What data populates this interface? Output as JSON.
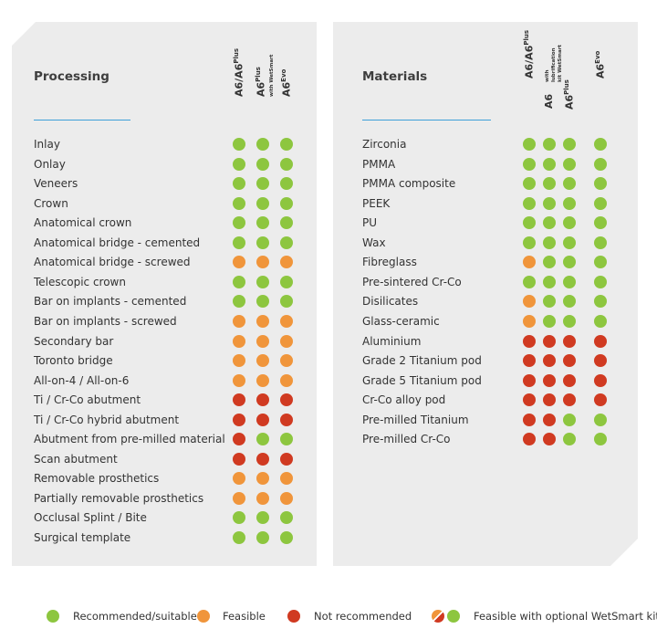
{
  "colors": {
    "recommended": "#8dc63f",
    "feasible": "#f0953b",
    "not_recommended": "#d03a21",
    "accent": "#3ea0d8"
  },
  "processing": {
    "title": "Processing",
    "columns": [
      {
        "main": "A6/A6",
        "sup": "Plus",
        "sub": ""
      },
      {
        "main": "A6",
        "sup": "Plus",
        "sub": "with WetSmart"
      },
      {
        "main": "A6",
        "sup": "Evo",
        "sub": ""
      }
    ],
    "rows": [
      {
        "label": "Inlay",
        "s": [
          "g",
          "g",
          "g"
        ]
      },
      {
        "label": "Onlay",
        "s": [
          "g",
          "g",
          "g"
        ]
      },
      {
        "label": "Veneers",
        "s": [
          "g",
          "g",
          "g"
        ]
      },
      {
        "label": "Crown",
        "s": [
          "g",
          "g",
          "g"
        ]
      },
      {
        "label": "Anatomical crown",
        "s": [
          "g",
          "g",
          "g"
        ]
      },
      {
        "label": "Anatomical bridge - cemented",
        "s": [
          "g",
          "g",
          "g"
        ]
      },
      {
        "label": "Anatomical bridge - screwed",
        "s": [
          "o",
          "o",
          "o"
        ]
      },
      {
        "label": "Telescopic crown",
        "s": [
          "g",
          "g",
          "g"
        ]
      },
      {
        "label": "Bar on implants - cemented",
        "s": [
          "g",
          "g",
          "g"
        ]
      },
      {
        "label": "Bar on implants - screwed",
        "s": [
          "o",
          "o",
          "o"
        ]
      },
      {
        "label": "Secondary bar",
        "s": [
          "o",
          "o",
          "o"
        ]
      },
      {
        "label": "Toronto bridge",
        "s": [
          "o",
          "o",
          "o"
        ]
      },
      {
        "label": "All-on-4 / All-on-6",
        "s": [
          "o",
          "o",
          "o"
        ]
      },
      {
        "label": "Ti / Cr-Co abutment",
        "s": [
          "r",
          "r",
          "r"
        ]
      },
      {
        "label": "Ti / Cr-Co hybrid abutment",
        "s": [
          "r",
          "r",
          "r"
        ]
      },
      {
        "label": "Abutment from pre-milled material",
        "s": [
          "r",
          "g",
          "g"
        ]
      },
      {
        "label": "Scan abutment",
        "s": [
          "r",
          "r",
          "r"
        ]
      },
      {
        "label": "Removable prosthetics",
        "s": [
          "o",
          "o",
          "o"
        ]
      },
      {
        "label": "Partially removable prosthetics",
        "s": [
          "o",
          "o",
          "o"
        ]
      },
      {
        "label": "Occlusal Splint / Bite",
        "s": [
          "g",
          "g",
          "g"
        ]
      },
      {
        "label": "Surgical template",
        "s": [
          "g",
          "g",
          "g"
        ]
      }
    ]
  },
  "materials": {
    "title": "Materials",
    "columns": [
      {
        "main": "A6/A6",
        "sup": "Plus",
        "sub": ""
      },
      {
        "main": "A6",
        "sup": "",
        "sub": ""
      },
      {
        "main": "A6",
        "sup": "Plus",
        "sub": "with lubrification kit WetSmart"
      },
      {
        "main": "A6",
        "sup": "Evo",
        "sub": ""
      }
    ],
    "rows": [
      {
        "label": "Zirconia",
        "s": [
          "g",
          "g",
          "g",
          "g"
        ]
      },
      {
        "label": "PMMA",
        "s": [
          "g",
          "g",
          "g",
          "g"
        ]
      },
      {
        "label": "PMMA composite",
        "s": [
          "g",
          "g",
          "g",
          "g"
        ]
      },
      {
        "label": "PEEK",
        "s": [
          "g",
          "g",
          "g",
          "g"
        ]
      },
      {
        "label": "PU",
        "s": [
          "g",
          "g",
          "g",
          "g"
        ]
      },
      {
        "label": "Wax",
        "s": [
          "g",
          "g",
          "g",
          "g"
        ]
      },
      {
        "label": "Fibreglass",
        "s": [
          "o",
          "g",
          "g",
          "g"
        ]
      },
      {
        "label": "Pre-sintered Cr-Co",
        "s": [
          "g",
          "g",
          "g",
          "g"
        ]
      },
      {
        "label": "Disilicates",
        "s": [
          "o",
          "g",
          "g",
          "g"
        ]
      },
      {
        "label": "Glass-ceramic",
        "s": [
          "o",
          "g",
          "g",
          "g"
        ]
      },
      {
        "label": "Aluminium",
        "s": [
          "r",
          "r",
          "r",
          "r"
        ]
      },
      {
        "label": "Grade 2 Titanium pod",
        "s": [
          "r",
          "r",
          "r",
          "r"
        ]
      },
      {
        "label": "Grade 5 Titanium pod",
        "s": [
          "r",
          "r",
          "r",
          "r"
        ]
      },
      {
        "label": "Cr-Co alloy pod",
        "s": [
          "r",
          "r",
          "r",
          "r"
        ]
      },
      {
        "label": "Pre-milled Titanium",
        "s": [
          "r",
          "r",
          "g",
          "g"
        ]
      },
      {
        "label": "Pre-milled Cr-Co",
        "s": [
          "r",
          "r",
          "g",
          "g"
        ]
      }
    ]
  },
  "legend": {
    "recommended": "Recommended/suitable",
    "feasible": "Feasible",
    "not_recommended": "Not recommended",
    "wetsmart": "Feasible with optional WetSmart kit"
  }
}
